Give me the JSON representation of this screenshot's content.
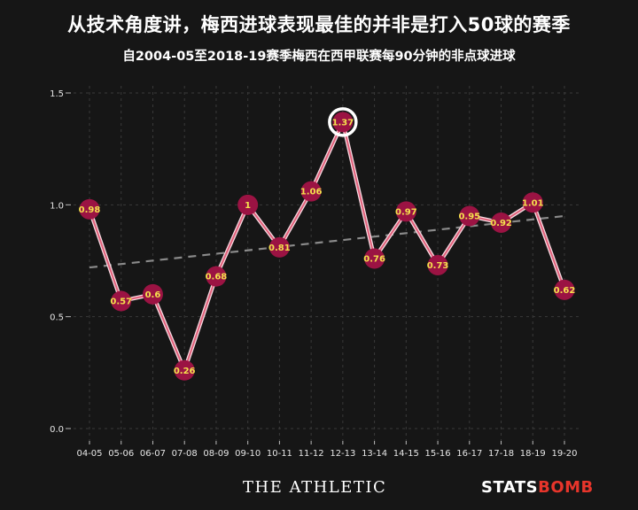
{
  "header": {
    "title": "从技术角度讲，梅西进球表现最佳的并非是打入50球的赛季",
    "subtitle": "自2004-05至2018-19赛季梅西在西甲联赛每90分钟的非点球进球"
  },
  "footer": {
    "left_logo": "THE ATHLETIC",
    "right_logo_main": "STATS",
    "right_logo_accent": "BOMB"
  },
  "colors": {
    "background": "#161616",
    "line": "#e0607a",
    "marker": "#9b1343",
    "label": "#f4e04d",
    "trend": "#8a8a8a",
    "grid": "#3a3a3a",
    "highlight_ring": "#ffffff"
  },
  "chart_data": {
    "type": "line",
    "categories": [
      "04-05",
      "05-06",
      "06-07",
      "07-08",
      "08-09",
      "09-10",
      "10-11",
      "11-12",
      "12-13",
      "13-14",
      "14-15",
      "15-16",
      "16-17",
      "17-18",
      "18-19",
      "19-20"
    ],
    "values": [
      0.98,
      0.57,
      0.6,
      0.26,
      0.68,
      1.0,
      0.81,
      1.06,
      1.37,
      0.76,
      0.97,
      0.73,
      0.95,
      0.92,
      1.01,
      0.62
    ],
    "data_labels": [
      "0.98",
      "0.57",
      "0.6",
      "0.26",
      "0.68",
      "1",
      "0.81",
      "1.06",
      "1.37",
      "0.76",
      "0.97",
      "0.73",
      "0.95",
      "0.92",
      "1.01",
      "0.62"
    ],
    "highlight_category": "12-13",
    "trendline": {
      "start": 0.72,
      "end": 0.95
    },
    "yticks": [
      "0.0",
      "0.5",
      "1.0",
      "1.5"
    ],
    "ylim": [
      0,
      1.5
    ],
    "grid": true,
    "title": "",
    "xlabel": "",
    "ylabel": ""
  }
}
